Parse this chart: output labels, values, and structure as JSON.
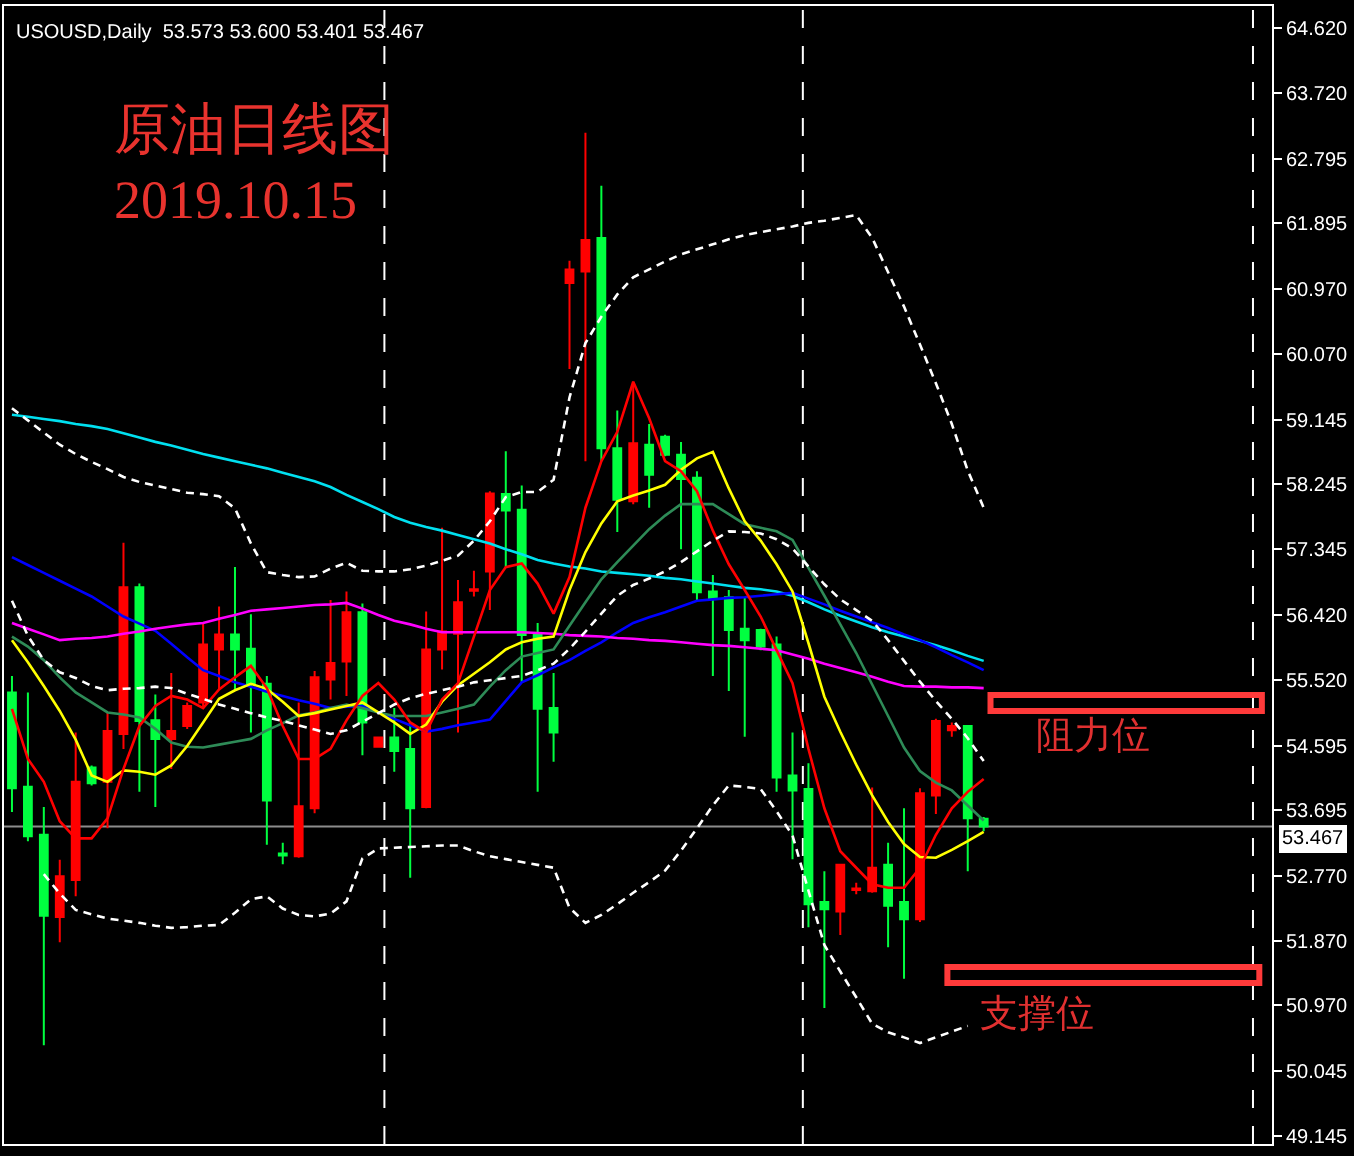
{
  "chart_data": {
    "type": "candlestick",
    "title": "USOUSD,Daily  53.573 53.600 53.401 53.467",
    "annotations": [
      "原油日线图",
      "2019.10.15",
      "阻力位",
      "支撑位"
    ],
    "categories": [
      null,
      null,
      null,
      null,
      null,
      null,
      null,
      null,
      null,
      null,
      null,
      null,
      null,
      null,
      null,
      null,
      null,
      null,
      null,
      null,
      null,
      null,
      null,
      null,
      null,
      null,
      null,
      null,
      null,
      null,
      null,
      null,
      null,
      null,
      null,
      null,
      null,
      null,
      null,
      null,
      null,
      null,
      null,
      null,
      null,
      null,
      null,
      null,
      null,
      null,
      null,
      null,
      null,
      null,
      null,
      null,
      null,
      null,
      null,
      null,
      null,
      null
    ],
    "ohlc": [
      [
        55.34,
        55.57,
        53.67,
        54.0
      ],
      [
        54.02,
        55.34,
        53.26,
        53.33
      ],
      [
        53.35,
        53.74,
        50.41,
        52.22
      ],
      [
        52.2,
        53.0,
        51.85,
        52.77
      ],
      [
        52.72,
        54.78,
        52.49,
        54.09
      ],
      [
        54.29,
        54.32,
        54.04,
        54.07
      ],
      [
        54.09,
        55.06,
        53.44,
        54.8
      ],
      [
        54.76,
        57.43,
        54.55,
        56.81
      ],
      [
        56.81,
        56.86,
        53.95,
        54.94
      ],
      [
        54.95,
        55.31,
        53.74,
        54.69
      ],
      [
        54.69,
        55.61,
        54.27,
        54.8
      ],
      [
        54.87,
        55.2,
        54.83,
        55.15
      ],
      [
        55.2,
        56.31,
        55.11,
        56.01
      ],
      [
        55.94,
        56.54,
        55.38,
        56.15
      ],
      [
        56.15,
        57.09,
        55.38,
        55.94
      ],
      [
        55.95,
        56.43,
        54.78,
        55.47
      ],
      [
        55.46,
        55.57,
        53.21,
        53.83
      ],
      [
        53.09,
        53.24,
        52.94,
        53.06
      ],
      [
        53.05,
        55.2,
        53.03,
        53.75
      ],
      [
        53.72,
        55.64,
        53.65,
        55.55
      ],
      [
        55.52,
        56.63,
        55.24,
        55.75
      ],
      [
        55.77,
        56.75,
        55.29,
        56.46
      ],
      [
        56.46,
        56.58,
        54.46,
        54.92
      ],
      [
        54.58,
        54.72,
        54.57,
        54.71
      ],
      [
        54.71,
        55.12,
        54.23,
        54.52
      ],
      [
        54.55,
        54.92,
        52.75,
        53.72
      ],
      [
        53.74,
        56.47,
        53.72,
        55.94
      ],
      [
        55.94,
        57.64,
        55.66,
        56.19
      ],
      [
        56.16,
        56.91,
        54.78,
        56.6
      ],
      [
        56.76,
        57.04,
        56.68,
        56.78
      ],
      [
        57.03,
        58.15,
        56.49,
        58.12
      ],
      [
        58.11,
        58.71,
        57.09,
        57.88
      ],
      [
        57.89,
        58.23,
        55.47,
        56.14
      ],
      [
        56.14,
        56.31,
        53.95,
        55.11
      ],
      [
        55.12,
        55.61,
        54.37,
        54.78
      ],
      [
        61.06,
        61.37,
        59.86,
        61.25
      ],
      [
        61.22,
        63.16,
        58.57,
        61.66
      ],
      [
        61.69,
        62.42,
        58.57,
        58.75
      ],
      [
        58.75,
        59.28,
        57.58,
        58.03
      ],
      [
        58.01,
        59.68,
        57.97,
        58.82
      ],
      [
        58.8,
        59.09,
        57.92,
        58.38
      ],
      [
        58.91,
        58.94,
        58.64,
        58.66
      ],
      [
        58.66,
        58.84,
        57.34,
        58.32
      ],
      [
        58.34,
        58.43,
        56.63,
        56.74
      ],
      [
        56.75,
        56.98,
        55.57,
        56.65
      ],
      [
        56.67,
        56.77,
        55.36,
        56.21
      ],
      [
        56.23,
        56.67,
        54.72,
        56.07
      ],
      [
        56.21,
        56.23,
        55.93,
        55.98
      ],
      [
        56.01,
        56.12,
        53.95,
        54.15
      ],
      [
        54.18,
        54.78,
        53.01,
        53.97
      ],
      [
        53.99,
        54.35,
        52.06,
        52.38
      ],
      [
        52.41,
        52.84,
        50.93,
        52.31
      ],
      [
        52.28,
        52.93,
        51.95,
        52.93
      ],
      [
        52.58,
        52.68,
        52.52,
        52.6
      ],
      [
        52.56,
        54.01,
        52.54,
        52.89
      ],
      [
        52.93,
        53.24,
        51.78,
        52.36
      ],
      [
        52.41,
        53.72,
        51.34,
        52.17
      ],
      [
        52.17,
        54.0,
        52.13,
        53.93
      ],
      [
        53.9,
        54.97,
        53.64,
        54.94
      ],
      [
        54.81,
        54.92,
        54.72,
        54.87
      ],
      [
        54.87,
        54.87,
        52.84,
        53.58
      ],
      [
        53.573,
        53.6,
        53.401,
        53.467
      ]
    ],
    "colors": [
      "#00ff40",
      "#00ff40",
      "#00ff40",
      "#ff0000",
      "#ff0000",
      "#00ff40",
      "#ff0000",
      "#ff0000",
      "#00ff40",
      "#00ff40",
      "#ff0000",
      "#ff0000",
      "#ff0000",
      "#ff0000",
      "#00ff40",
      "#00ff40",
      "#00ff40",
      "#00ff40",
      "#ff0000",
      "#ff0000",
      "#ff0000",
      "#ff0000",
      "#00ff40",
      "#ff0000",
      "#00ff40",
      "#00ff40",
      "#ff0000",
      "#ff0000",
      "#ff0000",
      "#ff0000",
      "#ff0000",
      "#00ff40",
      "#00ff40",
      "#00ff40",
      "#00ff40",
      "#ff0000",
      "#ff0000",
      "#00ff40",
      "#00ff40",
      "#ff0000",
      "#00ff40",
      "#00ff40",
      "#00ff40",
      "#00ff40",
      "#00ff40",
      "#00ff40",
      "#00ff40",
      "#00ff40",
      "#00ff40",
      "#00ff40",
      "#00ff40",
      "#00ff40",
      "#ff0000",
      "#ff0000",
      "#ff0000",
      "#00ff40",
      "#00ff40",
      "#ff0000",
      "#ff0000",
      "#ff0000",
      "#00ff40",
      "#00ff40"
    ],
    "series": [
      {
        "type": "line",
        "color": "#00e0f0",
        "line_style": "solid",
        "values": [
          59.22,
          59.19,
          59.16,
          59.13,
          59.09,
          59.06,
          59.02,
          58.96,
          58.9,
          58.84,
          58.79,
          58.73,
          58.67,
          58.62,
          58.57,
          58.52,
          58.47,
          58.41,
          58.35,
          58.29,
          58.21,
          58.1,
          58.0,
          57.9,
          57.79,
          57.71,
          57.65,
          57.6,
          57.54,
          57.48,
          57.42,
          57.34,
          57.27,
          57.19,
          57.14,
          57.1,
          57.07,
          57.03,
          57.01,
          56.99,
          56.97,
          56.94,
          56.92,
          56.89,
          56.86,
          56.83,
          56.8,
          56.78,
          56.75,
          56.69,
          56.6,
          56.5,
          56.41,
          56.33,
          56.25,
          56.18,
          56.12,
          56.06,
          56.0,
          55.93,
          55.85,
          55.78
        ]
      },
      {
        "type": "line",
        "color": "#0000ff",
        "line_style": "solid",
        "values": [
          57.23,
          57.12,
          57.01,
          56.9,
          56.79,
          56.68,
          56.54,
          56.4,
          56.3,
          56.2,
          56.02,
          55.83,
          55.65,
          55.57,
          55.48,
          55.42,
          55.35,
          55.29,
          55.23,
          55.18,
          55.12,
          55.14,
          55.15,
          55.06,
          54.97,
          54.88,
          54.79,
          54.83,
          54.88,
          54.92,
          54.96,
          55.22,
          55.48,
          55.58,
          55.69,
          55.79,
          55.92,
          56.04,
          56.18,
          56.31,
          56.39,
          56.46,
          56.54,
          56.62,
          56.64,
          56.66,
          56.67,
          56.69,
          56.71,
          56.73,
          56.65,
          56.57,
          56.48,
          56.4,
          56.32,
          56.24,
          56.15,
          56.07,
          55.97,
          55.86,
          55.76,
          55.65
        ]
      },
      {
        "type": "line",
        "color": "#ff00ff",
        "line_style": "solid",
        "values": [
          56.31,
          56.23,
          56.15,
          56.07,
          56.09,
          56.1,
          56.12,
          56.16,
          56.19,
          56.23,
          56.26,
          56.29,
          56.31,
          56.37,
          56.42,
          56.48,
          56.5,
          56.52,
          56.54,
          56.56,
          56.57,
          56.59,
          56.51,
          56.42,
          56.34,
          56.29,
          56.23,
          56.18,
          56.18,
          56.18,
          56.18,
          56.18,
          56.18,
          56.17,
          56.16,
          56.14,
          56.13,
          56.12,
          56.1,
          56.09,
          56.07,
          56.06,
          56.04,
          56.02,
          56.0,
          55.99,
          55.97,
          55.95,
          55.93,
          55.87,
          55.81,
          55.74,
          55.68,
          55.62,
          55.56,
          55.49,
          55.43,
          55.42,
          55.42,
          55.41,
          55.41,
          55.4
        ]
      },
      {
        "type": "line",
        "color": "#2e8b57",
        "line_style": "solid",
        "values": [
          56.12,
          55.98,
          55.79,
          55.55,
          55.34,
          55.2,
          55.06,
          55.03,
          54.99,
          54.83,
          54.64,
          54.58,
          54.57,
          54.61,
          54.65,
          54.69,
          54.81,
          54.91,
          55.02,
          55.06,
          55.12,
          55.17,
          55.12,
          55.06,
          55.01,
          55.01,
          55.01,
          55.06,
          55.11,
          55.17,
          55.42,
          55.65,
          55.84,
          55.89,
          55.94,
          56.27,
          56.6,
          56.92,
          57.16,
          57.39,
          57.62,
          57.81,
          57.97,
          57.97,
          57.97,
          57.83,
          57.69,
          57.64,
          57.59,
          57.47,
          57.08,
          56.69,
          56.29,
          55.89,
          55.45,
          55.01,
          54.57,
          54.24,
          54.08,
          53.97,
          53.76,
          53.55
        ]
      },
      {
        "type": "line",
        "color": "#ffff00",
        "line_style": "solid",
        "values": [
          56.07,
          55.76,
          55.43,
          55.08,
          54.68,
          54.18,
          54.09,
          54.25,
          54.23,
          54.19,
          54.32,
          54.59,
          54.92,
          55.25,
          55.37,
          55.46,
          55.39,
          55.21,
          55.01,
          55.05,
          55.1,
          55.15,
          55.2,
          55.06,
          54.92,
          54.76,
          54.89,
          55.21,
          55.44,
          55.6,
          55.76,
          55.94,
          56.04,
          56.09,
          56.12,
          56.77,
          57.3,
          57.7,
          58.01,
          58.09,
          58.16,
          58.24,
          58.45,
          58.61,
          58.7,
          58.19,
          57.73,
          57.46,
          57.13,
          56.75,
          56.03,
          55.28,
          54.79,
          54.33,
          53.9,
          53.53,
          53.22,
          53.04,
          53.03,
          53.14,
          53.26,
          53.39
        ]
      },
      {
        "type": "line",
        "color": "#ff0000",
        "line_style": "solid",
        "values": [
          55.11,
          54.41,
          54.09,
          53.54,
          53.3,
          53.3,
          53.58,
          54.27,
          54.87,
          55.15,
          55.29,
          55.24,
          55.12,
          55.38,
          55.55,
          55.71,
          55.4,
          54.87,
          54.41,
          54.41,
          54.55,
          54.95,
          55.29,
          55.47,
          55.24,
          54.92,
          54.78,
          55.24,
          55.47,
          56.12,
          56.77,
          57.09,
          57.14,
          56.86,
          56.44,
          56.95,
          57.92,
          58.57,
          58.98,
          59.68,
          59.17,
          58.57,
          58.43,
          58.15,
          57.6,
          57.13,
          56.77,
          56.4,
          55.93,
          55.47,
          54.55,
          53.72,
          53.12,
          52.89,
          52.66,
          52.61,
          52.61,
          52.89,
          53.35,
          53.72,
          53.95,
          54.13
        ]
      },
      {
        "type": "line",
        "color": "#ffffff",
        "line_style": "dashed",
        "values": [
          59.31,
          59.14,
          58.97,
          58.8,
          58.67,
          58.56,
          58.46,
          58.35,
          58.28,
          58.23,
          58.18,
          58.13,
          58.11,
          58.08,
          57.91,
          57.42,
          57.02,
          56.98,
          56.95,
          56.96,
          57.07,
          57.15,
          57.04,
          57.03,
          57.03,
          57.06,
          57.11,
          57.18,
          57.25,
          57.46,
          57.73,
          58.07,
          58.14,
          58.14,
          58.31,
          59.46,
          60.22,
          60.59,
          60.9,
          61.14,
          61.25,
          61.36,
          61.46,
          61.53,
          61.6,
          61.67,
          61.73,
          61.77,
          61.81,
          61.85,
          61.9,
          61.93,
          61.97,
          62.01,
          61.69,
          61.21,
          60.73,
          60.2,
          59.66,
          59.09,
          58.44,
          57.92
        ]
      },
      {
        "type": "line",
        "color": "#ffffff",
        "line_style": "dashed",
        "values": [
          56.62,
          56.13,
          55.79,
          55.62,
          55.54,
          55.43,
          55.37,
          55.39,
          55.4,
          55.42,
          55.4,
          55.32,
          55.25,
          55.17,
          55.11,
          55.05,
          54.99,
          54.94,
          54.88,
          54.82,
          54.76,
          54.81,
          54.93,
          55.05,
          55.17,
          55.26,
          55.32,
          55.37,
          55.42,
          55.48,
          55.51,
          55.54,
          55.57,
          55.65,
          55.74,
          55.95,
          56.19,
          56.44,
          56.69,
          56.84,
          56.93,
          57.03,
          57.16,
          57.31,
          57.46,
          57.59,
          57.58,
          57.56,
          57.48,
          57.35,
          57.1,
          56.85,
          56.64,
          56.49,
          56.34,
          56.07,
          55.78,
          55.49,
          55.22,
          54.97,
          54.7,
          54.38
        ]
      },
      {
        "type": "line",
        "color": "#ffffff",
        "line_style": "dashed",
        "values": [
          null,
          null,
          52.8,
          52.53,
          52.3,
          52.24,
          52.18,
          52.15,
          52.12,
          52.08,
          52.05,
          52.06,
          52.08,
          52.09,
          52.26,
          52.45,
          52.49,
          52.32,
          52.23,
          52.21,
          52.25,
          52.42,
          53.02,
          53.16,
          53.17,
          53.18,
          53.19,
          53.2,
          53.2,
          53.12,
          53.05,
          53.01,
          52.97,
          52.93,
          52.89,
          52.33,
          52.12,
          52.23,
          52.38,
          52.54,
          52.69,
          52.85,
          53.13,
          53.44,
          53.76,
          54.04,
          54.02,
          53.99,
          53.68,
          53.34,
          52.57,
          51.81,
          51.44,
          51.08,
          50.71,
          50.59,
          50.52,
          50.44,
          50.52,
          50.6,
          50.68,
          null
        ]
      }
    ],
    "ylim": [
      49.03,
      64.93
    ],
    "yticks": [
      {
        "value": 64.62,
        "label": "64.620"
      },
      {
        "value": 63.72,
        "label": "63.720"
      },
      62.795,
      61.895,
      {
        "value": 60.97,
        "label": "60.970"
      },
      {
        "value": 60.07,
        "label": "60.070"
      },
      59.145,
      58.245,
      57.345,
      {
        "value": 56.42,
        "label": "56.420"
      },
      {
        "value": 55.52,
        "label": "55.520"
      },
      54.595,
      53.695,
      {
        "value": 52.77,
        "label": "52.770"
      },
      {
        "value": 51.87,
        "label": "51.870"
      },
      {
        "value": 50.97,
        "label": "50.970"
      },
      50.045,
      49.145
    ],
    "tick_labels": "y",
    "grid": false,
    "ref_lines": [
      {
        "axis": "y",
        "value": 53.467,
        "label": "53.467",
        "color": "#8c8c8c",
        "line_style": "solid"
      }
    ]
  }
}
